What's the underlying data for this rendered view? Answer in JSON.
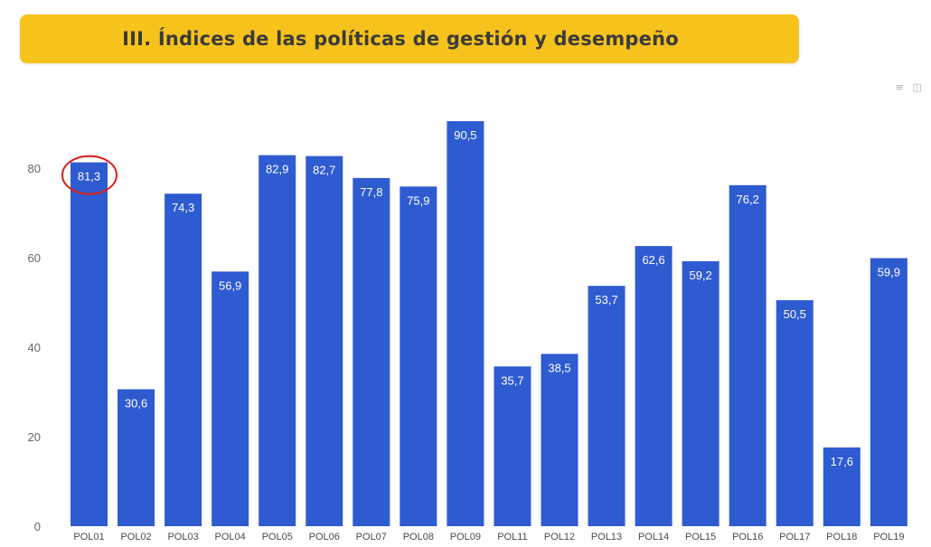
{
  "header": {
    "title": "III. Índices de las políticas de gestión y desempeño"
  },
  "toolbar": {
    "icons": [
      "menu-icon",
      "export-icon"
    ]
  },
  "chart_data": {
    "type": "bar",
    "categories": [
      "POL01",
      "POL02",
      "POL03",
      "POL04",
      "POL05",
      "POL06",
      "POL07",
      "POL08",
      "POL09",
      "POL11",
      "POL12",
      "POL13",
      "POL14",
      "POL15",
      "POL16",
      "POL17",
      "POL18",
      "POL19"
    ],
    "values": [
      81.3,
      30.6,
      74.3,
      56.9,
      82.9,
      82.7,
      77.8,
      75.9,
      90.5,
      35.7,
      38.5,
      53.7,
      62.6,
      59.2,
      76.2,
      50.5,
      17.6,
      59.9
    ],
    "data_labels": [
      "81,3",
      "30,6",
      "74,3",
      "56,9",
      "82,9",
      "82,7",
      "77,8",
      "75,9",
      "90,5",
      "35,7",
      "38,5",
      "53,7",
      "62,6",
      "59,2",
      "76,2",
      "50,5",
      "17,6",
      "59,9"
    ],
    "yticks": [
      "0",
      "20",
      "40",
      "60",
      "80"
    ],
    "ylim": [
      0,
      100
    ],
    "highlighted_category": "POL01",
    "highlight_color": "#d9201c",
    "bar_color": "#2f5bd0",
    "grid": false,
    "legend": "none"
  }
}
